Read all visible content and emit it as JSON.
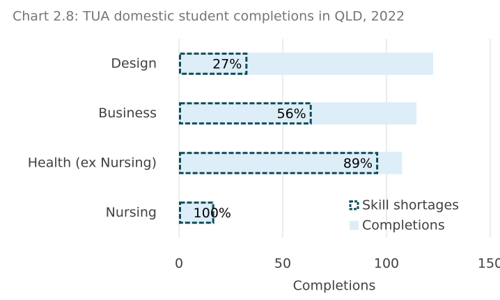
{
  "chart_data": {
    "type": "bar",
    "orientation": "horizontal",
    "title": "Chart 2.8: TUA domestic student completions in QLD, 2022",
    "x_label": "Completions",
    "categories": [
      "Design",
      "Business",
      "Health (ex Nursing)",
      "Nursing"
    ],
    "series": [
      {
        "name": "Completions",
        "color": "#ddeef9",
        "style": "solid",
        "values": [
          122.5,
          114.5,
          107.5,
          17
        ]
      },
      {
        "name": "Skill shortages",
        "color": "#0f4c58",
        "style": "dashed",
        "values": [
          33,
          64,
          96,
          17
        ],
        "share_labels": [
          "27%",
          "56%",
          "89%",
          "100%"
        ]
      }
    ],
    "xlim": [
      0,
      150
    ],
    "xticks": [
      0,
      50,
      100,
      150
    ],
    "grid": true,
    "legend": "lower right"
  }
}
